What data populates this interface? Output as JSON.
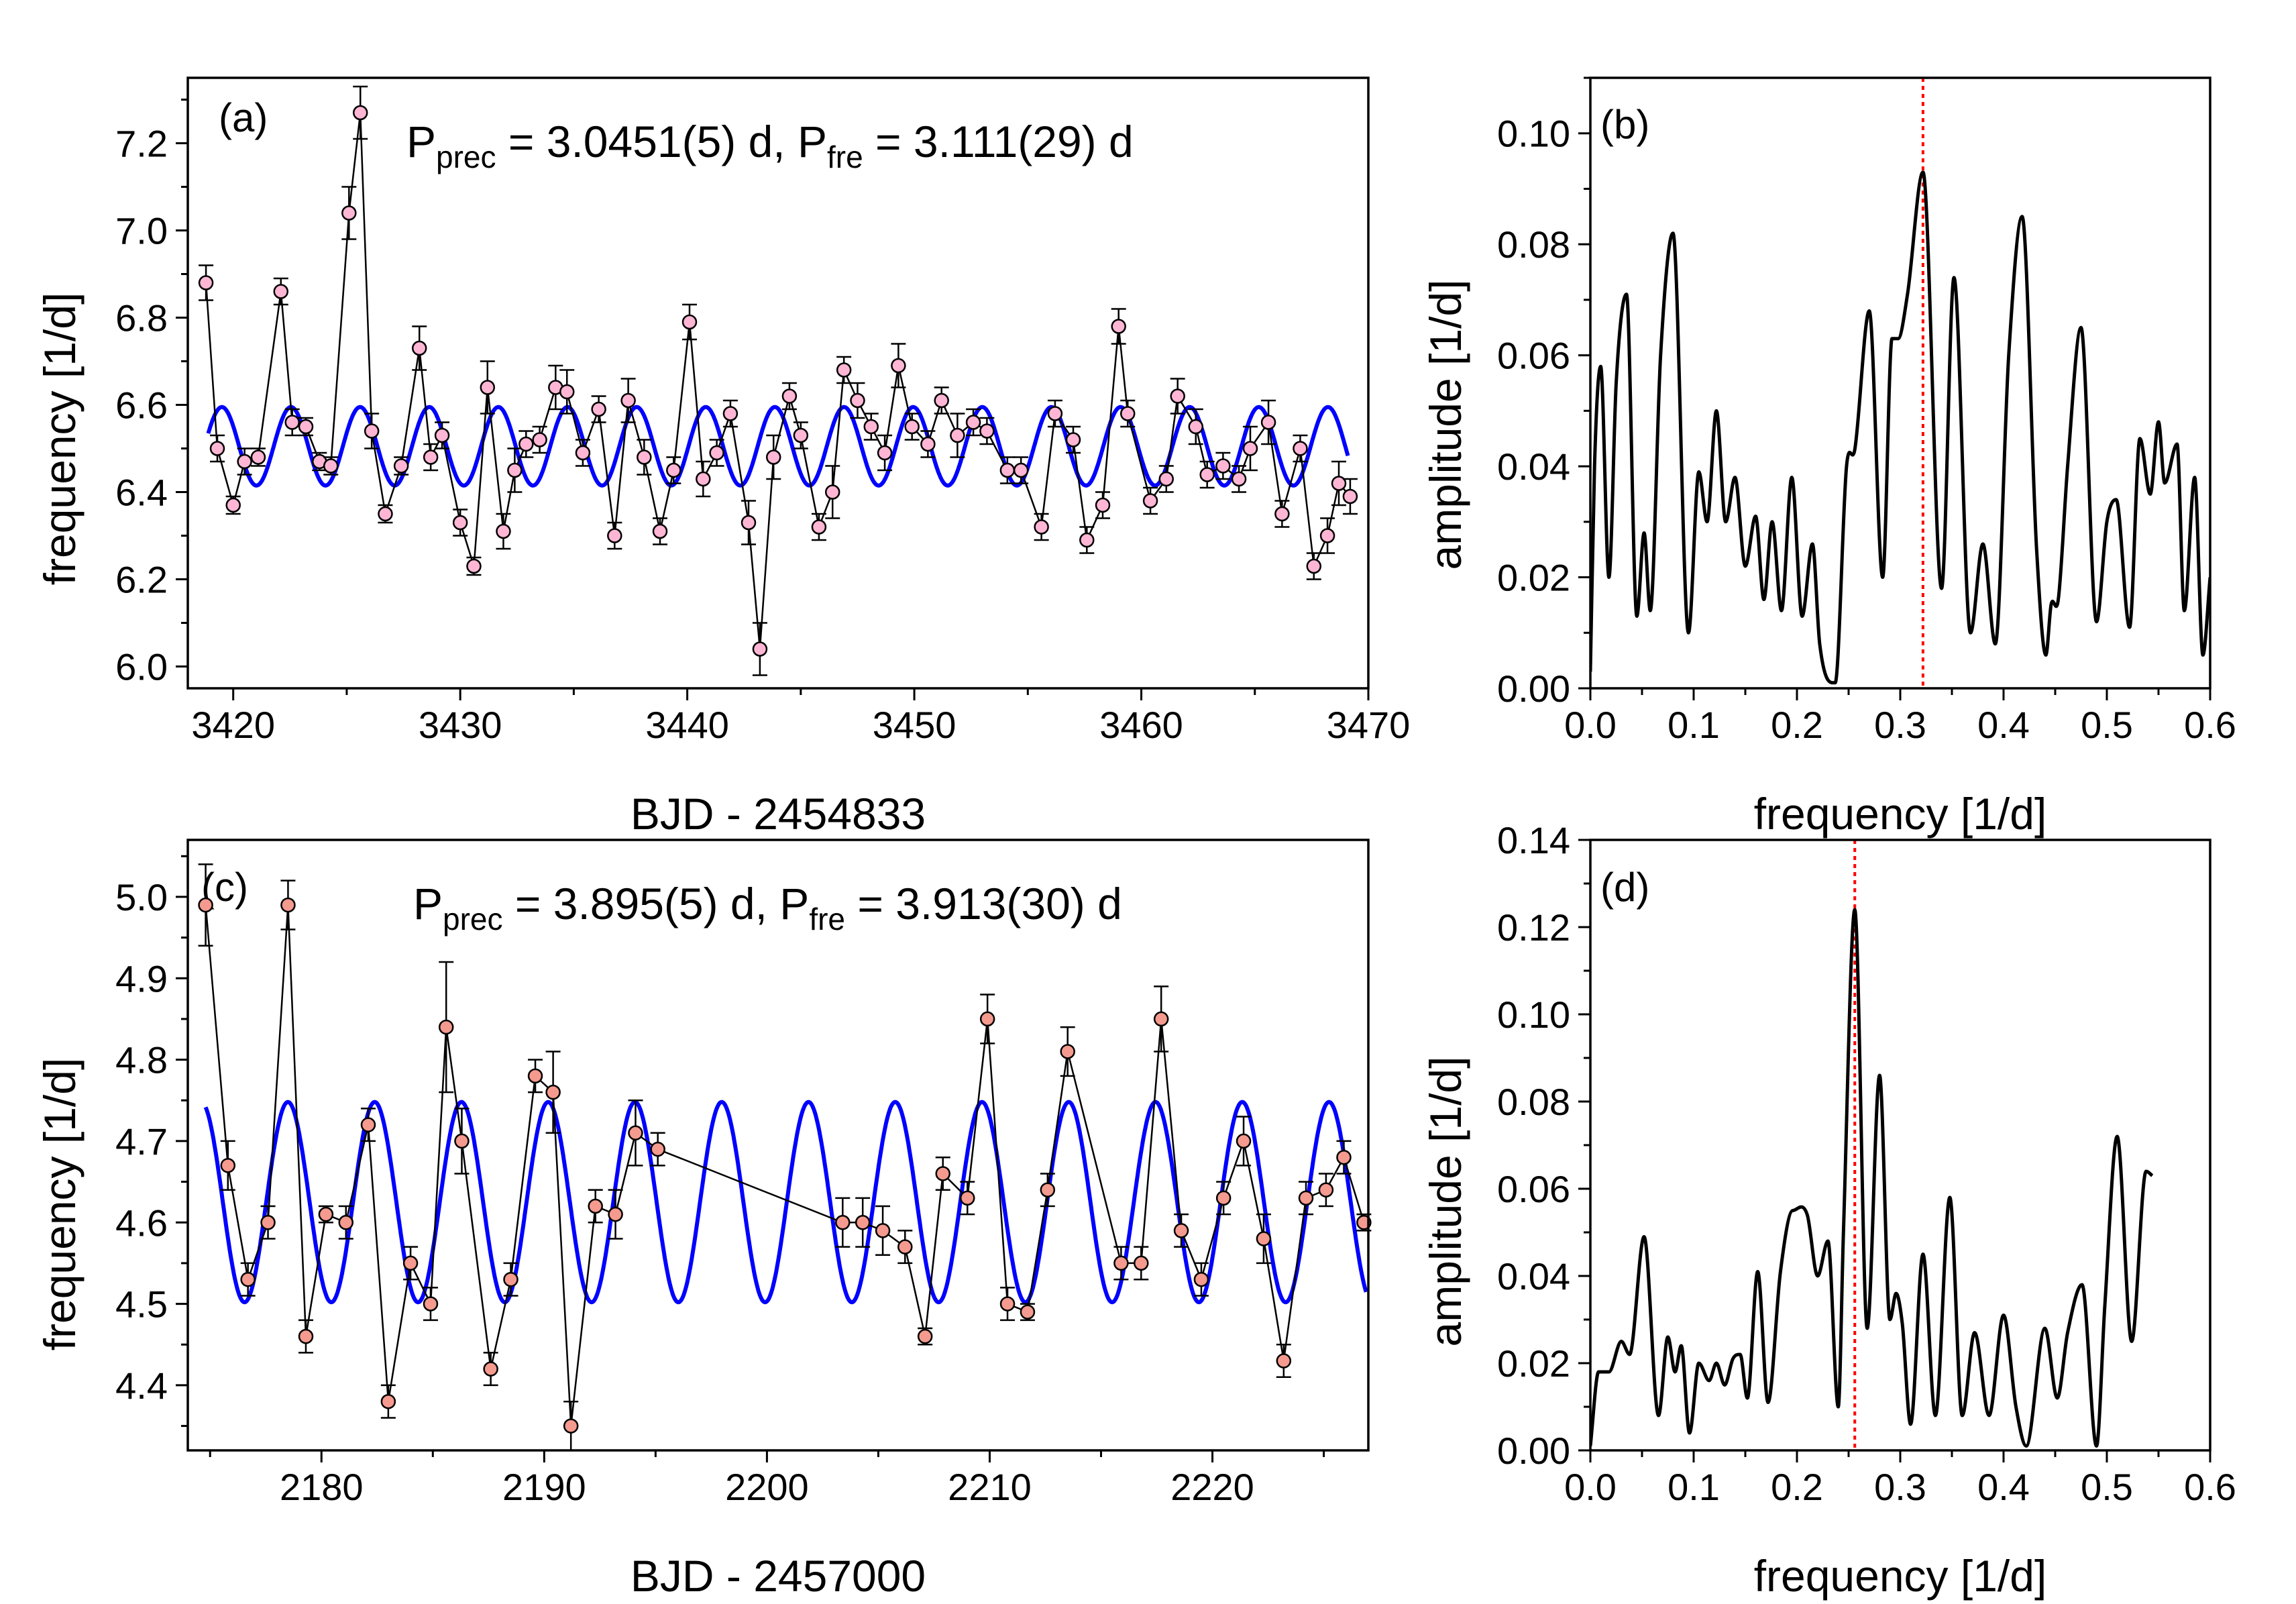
{
  "colors": {
    "model": "#0000ff",
    "peak_marker": "#ff0000",
    "points_a": "#ffb6d5",
    "points_c": "#f59a8e",
    "line": "#000000"
  },
  "chart_data": [
    {
      "id": "a",
      "type": "line",
      "panel_label": "(a)",
      "annotation": {
        "p1": "P",
        "p1_sub": "prec",
        "p1_val": " = 3.0451(5) d, ",
        "p2": "P",
        "p2_sub": "fre",
        "p2_val": " = 3.111(29) d"
      },
      "xlabel": "BJD - 2454833",
      "ylabel": "frequency [1/d]",
      "xlim": [
        3418,
        3470
      ],
      "ylim": [
        5.95,
        7.35
      ],
      "xticks": [
        3420,
        3430,
        3440,
        3450,
        3460,
        3470
      ],
      "yticks": [
        6.0,
        6.2,
        6.4,
        6.6,
        6.8,
        7.0,
        7.2
      ],
      "ytick_labels": [
        "6.0",
        "6.2",
        "6.4",
        "6.6",
        "6.8",
        "7.0",
        "7.2"
      ],
      "model": {
        "mean": 6.505,
        "amplitude": 0.09,
        "period": 3.0451,
        "phase_time": 3419.5,
        "x_start": 3418.9,
        "x_end": 3469.1
      },
      "series": [
        {
          "name": "frequency",
          "x": [
            3418.8,
            3419.3,
            3420.0,
            3420.5,
            3421.1,
            3422.1,
            3422.6,
            3423.2,
            3423.8,
            3424.3,
            3425.1,
            3425.6,
            3426.1,
            3426.7,
            3427.4,
            3428.2,
            3428.7,
            3429.2,
            3430.0,
            3430.6,
            3431.2,
            3431.9,
            3432.4,
            3432.9,
            3433.5,
            3434.2,
            3434.7,
            3435.4,
            3436.1,
            3436.8,
            3437.4,
            3438.1,
            3438.8,
            3439.4,
            3440.1,
            3440.7,
            3441.3,
            3441.9,
            3442.7,
            3443.2,
            3443.8,
            3444.5,
            3445.0,
            3445.8,
            3446.4,
            3446.9,
            3447.5,
            3448.1,
            3448.7,
            3449.3,
            3449.9,
            3450.6,
            3451.2,
            3451.9,
            3452.6,
            3453.2,
            3454.1,
            3454.7,
            3455.6,
            3456.2,
            3457.0,
            3457.6,
            3458.3,
            3459.0,
            3459.4,
            3460.4,
            3461.1,
            3461.6,
            3462.4,
            3462.9,
            3463.6,
            3464.3,
            3464.8,
            3465.6,
            3466.2,
            3467.0,
            3467.6,
            3468.2,
            3468.7,
            3469.2
          ],
          "y": [
            6.88,
            6.5,
            6.37,
            6.47,
            6.48,
            6.86,
            6.56,
            6.55,
            6.47,
            6.46,
            7.04,
            7.27,
            6.54,
            6.35,
            6.46,
            6.73,
            6.48,
            6.53,
            6.33,
            6.23,
            6.64,
            6.31,
            6.45,
            6.51,
            6.52,
            6.64,
            6.63,
            6.49,
            6.59,
            6.3,
            6.61,
            6.48,
            6.31,
            6.45,
            6.79,
            6.43,
            6.49,
            6.58,
            6.33,
            6.04,
            6.48,
            6.62,
            6.53,
            6.32,
            6.4,
            6.68,
            6.61,
            6.55,
            6.49,
            6.69,
            6.55,
            6.51,
            6.61,
            6.53,
            6.56,
            6.54,
            6.45,
            6.45,
            6.32,
            6.58,
            6.52,
            6.29,
            6.37,
            6.78,
            6.58,
            6.38,
            6.43,
            6.62,
            6.55,
            6.44,
            6.46,
            6.43,
            6.5,
            6.56,
            6.35,
            6.5,
            6.23,
            6.3,
            6.42,
            6.39
          ],
          "err": [
            0.04,
            0.03,
            0.02,
            0.03,
            0.02,
            0.03,
            0.03,
            0.02,
            0.02,
            0.02,
            0.06,
            0.06,
            0.04,
            0.02,
            0.02,
            0.05,
            0.03,
            0.03,
            0.03,
            0.02,
            0.06,
            0.04,
            0.05,
            0.03,
            0.03,
            0.05,
            0.05,
            0.03,
            0.03,
            0.03,
            0.05,
            0.04,
            0.03,
            0.03,
            0.04,
            0.04,
            0.03,
            0.03,
            0.05,
            0.06,
            0.05,
            0.03,
            0.03,
            0.03,
            0.06,
            0.03,
            0.04,
            0.03,
            0.04,
            0.05,
            0.03,
            0.03,
            0.03,
            0.05,
            0.03,
            0.03,
            0.03,
            0.03,
            0.03,
            0.03,
            0.03,
            0.03,
            0.03,
            0.04,
            0.03,
            0.03,
            0.03,
            0.04,
            0.04,
            0.03,
            0.03,
            0.03,
            0.05,
            0.05,
            0.03,
            0.03,
            0.03,
            0.04,
            0.05,
            0.04
          ]
        }
      ]
    },
    {
      "id": "b",
      "type": "line",
      "panel_label": "(b)",
      "xlabel": "frequency [1/d]",
      "ylabel": "amplitude [1/d]",
      "xlim": [
        0.0,
        0.6
      ],
      "ylim": [
        0.0,
        0.11
      ],
      "xticks": [
        0.0,
        0.1,
        0.2,
        0.3,
        0.4,
        0.5,
        0.6
      ],
      "xtick_labels": [
        "0.0",
        "0.1",
        "0.2",
        "0.3",
        "0.4",
        "0.5",
        "0.6"
      ],
      "yticks": [
        0.0,
        0.02,
        0.04,
        0.06,
        0.08,
        0.1
      ],
      "ytick_labels": [
        "0.00",
        "0.02",
        "0.04",
        "0.06",
        "0.08",
        "0.10"
      ],
      "peak_line": 0.322,
      "series": [
        {
          "name": "periodogram",
          "x": [
            0.0,
            0.004,
            0.01,
            0.018,
            0.025,
            0.035,
            0.045,
            0.052,
            0.058,
            0.068,
            0.08,
            0.095,
            0.105,
            0.113,
            0.122,
            0.131,
            0.14,
            0.15,
            0.16,
            0.168,
            0.176,
            0.185,
            0.195,
            0.205,
            0.215,
            0.222,
            0.237,
            0.248,
            0.256,
            0.27,
            0.283,
            0.292,
            0.298,
            0.307,
            0.322,
            0.34,
            0.352,
            0.368,
            0.38,
            0.392,
            0.405,
            0.418,
            0.432,
            0.441,
            0.446,
            0.453,
            0.462,
            0.475,
            0.49,
            0.5,
            0.509,
            0.522,
            0.532,
            0.542,
            0.55,
            0.556,
            0.568,
            0.575,
            0.585,
            0.593,
            0.6
          ],
          "y": [
            0.003,
            0.04,
            0.058,
            0.02,
            0.055,
            0.071,
            0.013,
            0.028,
            0.014,
            0.06,
            0.082,
            0.01,
            0.039,
            0.03,
            0.05,
            0.03,
            0.038,
            0.022,
            0.031,
            0.016,
            0.03,
            0.014,
            0.038,
            0.013,
            0.026,
            0.008,
            0.001,
            0.04,
            0.043,
            0.068,
            0.02,
            0.063,
            0.063,
            0.071,
            0.093,
            0.018,
            0.074,
            0.01,
            0.026,
            0.008,
            0.06,
            0.085,
            0.025,
            0.006,
            0.015,
            0.016,
            0.04,
            0.065,
            0.012,
            0.03,
            0.034,
            0.011,
            0.045,
            0.035,
            0.048,
            0.037,
            0.044,
            0.014,
            0.038,
            0.006,
            0.02
          ]
        }
      ]
    },
    {
      "id": "c",
      "type": "line",
      "panel_label": "(c)",
      "annotation": {
        "p1": "P",
        "p1_sub": "prec",
        "p1_val": " = 3.895(5) d, ",
        "p2": "P",
        "p2_sub": "fre",
        "p2_val": " = 3.913(30) d"
      },
      "xlabel": "BJD - 2457000",
      "ylabel": "frequency [1/d]",
      "xlim": [
        2174,
        2227
      ],
      "ylim": [
        4.32,
        5.07
      ],
      "xticks": [
        2180,
        2190,
        2200,
        2210,
        2220
      ],
      "yticks": [
        4.4,
        4.5,
        4.6,
        4.7,
        4.8,
        4.9,
        5.0
      ],
      "ytick_labels": [
        "4.4",
        "4.5",
        "4.6",
        "4.7",
        "4.8",
        "4.9",
        "5.0"
      ],
      "model": {
        "mean": 4.625,
        "amplitude": 0.123,
        "period": 3.895,
        "phase_time": 2174.6,
        "x_start": 2174.8,
        "x_end": 2226.9
      },
      "series": [
        {
          "name": "frequency",
          "x": [
            2174.8,
            2175.8,
            2176.7,
            2177.6,
            2178.5,
            2179.3,
            2180.2,
            2181.1,
            2182.1,
            2183.0,
            2184.0,
            2184.9,
            2185.6,
            2186.3,
            2187.6,
            2188.5,
            2189.6,
            2190.4,
            2191.2,
            2192.3,
            2193.2,
            2194.1,
            2195.1,
            2203.4,
            2204.3,
            2205.2,
            2206.2,
            2207.1,
            2207.9,
            2209.0,
            2209.9,
            2210.8,
            2211.7,
            2212.6,
            2213.5,
            2215.9,
            2216.8,
            2217.7,
            2218.6,
            2219.5,
            2220.5,
            2221.4,
            2222.3,
            2223.2,
            2224.2,
            2225.1,
            2225.9,
            2226.8
          ],
          "y": [
            4.99,
            4.67,
            4.53,
            4.6,
            4.99,
            4.46,
            4.61,
            4.6,
            4.72,
            4.38,
            4.55,
            4.5,
            4.84,
            4.7,
            4.42,
            4.53,
            4.78,
            4.76,
            4.35,
            4.62,
            4.61,
            4.71,
            4.69,
            4.6,
            4.6,
            4.59,
            4.57,
            4.46,
            4.66,
            4.63,
            4.85,
            4.5,
            4.49,
            4.64,
            4.81,
            4.55,
            4.55,
            4.85,
            4.59,
            4.53,
            4.63,
            4.7,
            4.58,
            4.43,
            4.63,
            4.64,
            4.68,
            4.6
          ],
          "err": [
            0.05,
            0.03,
            0.02,
            0.02,
            0.03,
            0.02,
            0.01,
            0.02,
            0.02,
            0.02,
            0.02,
            0.02,
            0.08,
            0.04,
            0.02,
            0.02,
            0.02,
            0.05,
            0.03,
            0.02,
            0.03,
            0.04,
            0.02,
            0.03,
            0.03,
            0.03,
            0.02,
            0.01,
            0.02,
            0.02,
            0.03,
            0.02,
            0.01,
            0.02,
            0.03,
            0.02,
            0.02,
            0.04,
            0.02,
            0.02,
            0.02,
            0.03,
            0.03,
            0.02,
            0.02,
            0.02,
            0.02,
            0.01
          ]
        }
      ]
    },
    {
      "id": "d",
      "type": "line",
      "panel_label": "(d)",
      "xlabel": "frequency [1/d]",
      "ylabel": "amplitude [1/d]",
      "xlim": [
        0.0,
        0.6
      ],
      "ylim": [
        0.0,
        0.14
      ],
      "xticks": [
        0.0,
        0.1,
        0.2,
        0.3,
        0.4,
        0.5,
        0.6
      ],
      "xtick_labels": [
        "0.0",
        "0.1",
        "0.2",
        "0.3",
        "0.4",
        "0.5",
        "0.6"
      ],
      "yticks": [
        0.0,
        0.02,
        0.04,
        0.06,
        0.08,
        0.1,
        0.12,
        0.14
      ],
      "ytick_labels": [
        "0.00",
        "0.02",
        "0.04",
        "0.06",
        "0.08",
        "0.10",
        "0.12",
        "0.14"
      ],
      "peak_line": 0.256,
      "series": [
        {
          "name": "periodogram",
          "x": [
            0.0,
            0.008,
            0.018,
            0.03,
            0.038,
            0.052,
            0.066,
            0.075,
            0.082,
            0.088,
            0.096,
            0.105,
            0.115,
            0.122,
            0.13,
            0.138,
            0.145,
            0.152,
            0.162,
            0.172,
            0.184,
            0.196,
            0.21,
            0.22,
            0.23,
            0.24,
            0.245,
            0.256,
            0.268,
            0.28,
            0.29,
            0.296,
            0.302,
            0.31,
            0.322,
            0.334,
            0.348,
            0.36,
            0.372,
            0.386,
            0.4,
            0.412,
            0.422,
            0.44,
            0.452,
            0.462,
            0.476,
            0.49,
            0.498,
            0.51,
            0.524,
            0.538,
            0.544
          ],
          "y": [
            0.001,
            0.018,
            0.018,
            0.025,
            0.022,
            0.049,
            0.008,
            0.026,
            0.018,
            0.024,
            0.004,
            0.02,
            0.016,
            0.02,
            0.015,
            0.021,
            0.022,
            0.012,
            0.041,
            0.011,
            0.041,
            0.055,
            0.054,
            0.04,
            0.048,
            0.01,
            0.05,
            0.124,
            0.028,
            0.086,
            0.03,
            0.036,
            0.029,
            0.006,
            0.045,
            0.008,
            0.058,
            0.008,
            0.027,
            0.008,
            0.031,
            0.01,
            0.001,
            0.028,
            0.012,
            0.027,
            0.038,
            0.001,
            0.033,
            0.072,
            0.025,
            0.064,
            0.063
          ]
        }
      ]
    }
  ]
}
